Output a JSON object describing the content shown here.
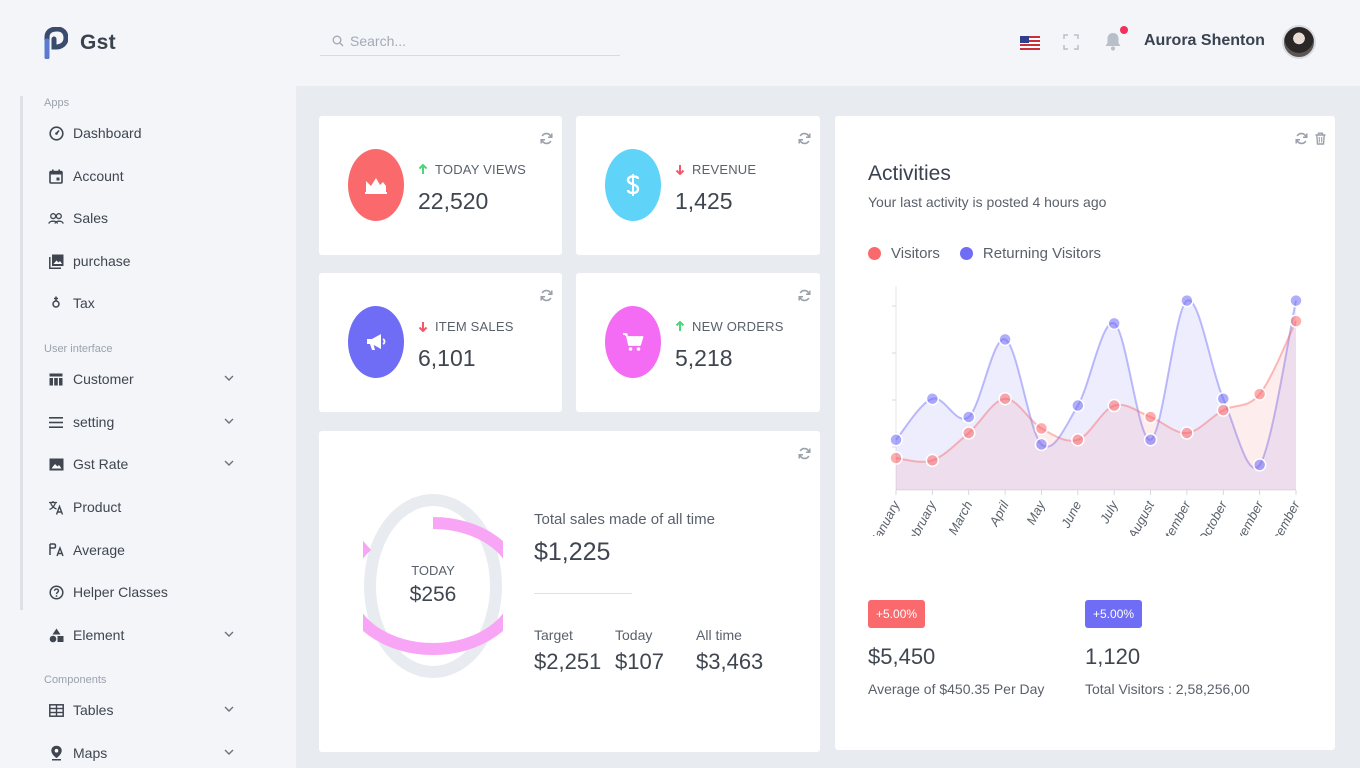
{
  "app": {
    "name": "Gst"
  },
  "header": {
    "search_placeholder": "Search...",
    "user_name": "Aurora Shenton"
  },
  "sidebar": {
    "sections": [
      {
        "label": "Apps"
      },
      {
        "label": "User interface"
      },
      {
        "label": "Components"
      }
    ],
    "items": [
      {
        "label": "Dashboard",
        "icon": "dashboard-icon"
      },
      {
        "label": "Account",
        "icon": "calendar-icon"
      },
      {
        "label": "Sales",
        "icon": "users-icon"
      },
      {
        "label": "purchase",
        "icon": "image-icon"
      },
      {
        "label": "Tax",
        "icon": "gender-icon"
      },
      {
        "label": "Customer",
        "icon": "layout-icon",
        "expandable": true
      },
      {
        "label": "setting",
        "icon": "menu-icon",
        "expandable": true
      },
      {
        "label": "Gst Rate",
        "icon": "photo-icon",
        "expandable": true
      },
      {
        "label": "Product",
        "icon": "translate-icon"
      },
      {
        "label": "Average",
        "icon": "font-icon"
      },
      {
        "label": "Helper Classes",
        "icon": "help-icon"
      },
      {
        "label": "Element",
        "icon": "shapes-icon",
        "expandable": true
      },
      {
        "label": "Tables",
        "icon": "table-icon",
        "expandable": true
      },
      {
        "label": "Maps",
        "icon": "map-pin-icon",
        "expandable": true
      }
    ]
  },
  "stats": [
    {
      "label": "TODAY VIEWS",
      "value": "22,520",
      "trend": "up",
      "color": "#fa6a6c",
      "icon": "area-chart-icon"
    },
    {
      "label": "REVENUE",
      "value": "1,425",
      "trend": "down",
      "color": "#5fd3f8",
      "icon": "dollar-icon"
    },
    {
      "label": "ITEM SALES",
      "value": "6,101",
      "trend": "down",
      "color": "#6f6cf6",
      "icon": "megaphone-icon"
    },
    {
      "label": "NEW ORDERS",
      "value": "5,218",
      "trend": "up",
      "color": "#f46cf4",
      "icon": "cart-icon"
    }
  ],
  "sales": {
    "today_label": "TODAY",
    "today_value": "$256",
    "title": "Total sales made of all time",
    "total": "$1,225",
    "donut_fraction": 0.85,
    "donut_color": "#f8a5f6",
    "donut_track": "#e8ebef",
    "metrics": [
      {
        "label": "Target",
        "value": "$2,251"
      },
      {
        "label": "Today",
        "value": "$107"
      },
      {
        "label": "All time",
        "value": "$3,463"
      }
    ]
  },
  "activities": {
    "title": "Activities",
    "subtitle": "Your last activity is posted 4 hours ago",
    "footer": [
      {
        "badge": "+5.00%",
        "badge_color": "#fa6a6c",
        "value": "$5,450",
        "label": "Average of $450.35 Per Day"
      },
      {
        "badge": "+5.00%",
        "badge_color": "#6f6cf6",
        "value": "1,120",
        "label": "Total Visitors : 2,58,256,00"
      }
    ]
  },
  "chart_data": {
    "type": "area",
    "categories": [
      "January",
      "February",
      "March",
      "April",
      "May",
      "June",
      "July",
      "August",
      "September",
      "October",
      "November",
      "December"
    ],
    "series": [
      {
        "name": "Visitors",
        "color": "#fa6a6c",
        "values": [
          14,
          13,
          25,
          40,
          27,
          22,
          37,
          32,
          25,
          35,
          42,
          74
        ]
      },
      {
        "name": "Returning Visitors",
        "color": "#6f6cf6",
        "values": [
          22,
          40,
          32,
          66,
          20,
          37,
          73,
          22,
          83,
          40,
          11,
          83
        ]
      }
    ],
    "ylim": [
      0,
      85
    ],
    "grid": false,
    "legend": "top-left"
  }
}
